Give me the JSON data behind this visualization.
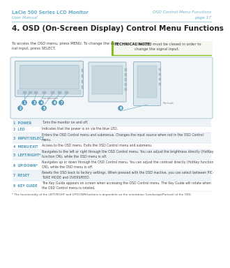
{
  "header_left_line1": "LaCie 500 Series LCD Monitor",
  "header_left_line2": "User Manual",
  "header_right_line1": "OSD Control Menu Functions",
  "header_right_line2": "page 17",
  "header_color": "#6ab0cc",
  "header_line_color": "#aaccdd",
  "title": "4. OSD (On-Screen Display) Control Menu Functions",
  "title_color": "#222222",
  "body_text_left": "To access the OSD menu, press MENU. To change the sig-\nnal input, press SELECT.",
  "tech_note_label": "TECHNICAL NOTE:",
  "tech_note_text": " The OSD must be closed in order to\nchange the signal input.",
  "tech_note_bar_color": "#88bb22",
  "bg_color": "#ffffff",
  "box_bg": "#f2f6f9",
  "box_border": "#b0ccd8",
  "table_rows": [
    {
      "num": "1",
      "label": "POWER",
      "desc": "Turns the monitor on and off.",
      "label_color": "#5599bb"
    },
    {
      "num": "2",
      "label": "LED",
      "desc": "Indicates that the power is on via the blue LED.",
      "label_color": "#5599bb"
    },
    {
      "num": "3",
      "label": "INPUT/SELECT",
      "desc": "Enters the OSD Control menu and submenus. Changes the input source when not in the OSD Control\nmenu.",
      "label_color": "#5599bb"
    },
    {
      "num": "4",
      "label": "MENU/EXIT",
      "desc": "Access to the OSD menu. Exits the OSD Control menu and submenu.",
      "label_color": "#5599bb"
    },
    {
      "num": "5",
      "label": "LEFT/RIGHT*",
      "desc": "Navigates to the left or right through the OSD Control menu. You can adjust the brightness directly (HotKey\nfunction ON), while the OSD menu is off.",
      "label_color": "#5599bb"
    },
    {
      "num": "6",
      "label": "UP/DOWN*",
      "desc": "Navigates up or down through the OSD Control menu. You can adjust the contrast directly (HotKey function\nON), while the OSD menu is off.",
      "label_color": "#5599bb"
    },
    {
      "num": "7",
      "label": "RESET",
      "desc": "Resets the OSD back to factory settings. When pressed with the OSD inactive, you can select between PIC-\nTURE MODE and OVERSPEED.",
      "label_color": "#5599bb"
    },
    {
      "num": "8",
      "label": "KEY GUIDE",
      "desc": "The Key Guide appears on screen when accessing the OSD Control menu. The Key Guide will rotate when\nthe OSD Control menu is rotated.",
      "label_color": "#5599bb"
    }
  ],
  "footnote": "* The functionality of the LEFT/RIGHT and UP/DOWN buttons is dependent on the orientation (Landscape/Portrait) of the OSD.",
  "circle_color": "#5599bb",
  "circle_text_color": "#ffffff",
  "line_color": "#88bbcc"
}
